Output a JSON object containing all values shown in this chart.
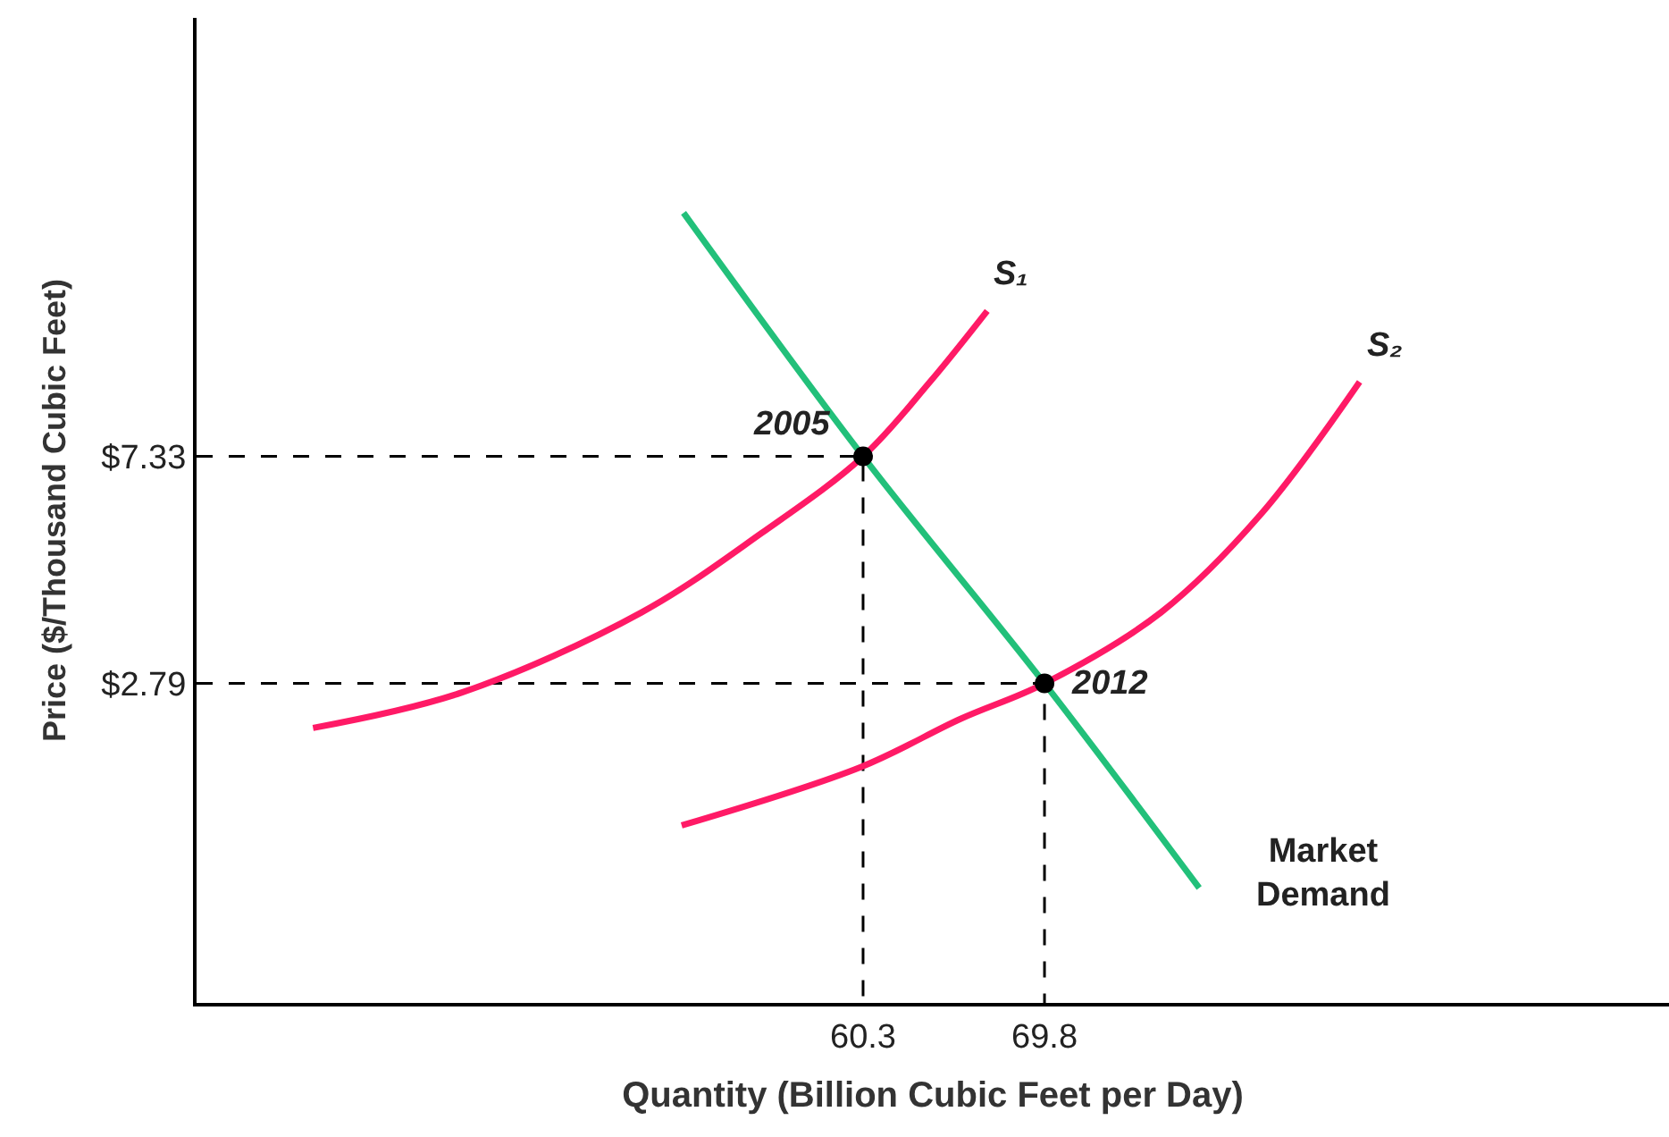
{
  "chart_data": {
    "type": "line",
    "xlabel": "Quantity (Billion Cubic Feet per Day)",
    "ylabel": "Price ($/Thousand Cubic Feet)",
    "xlim": [
      25.4,
      102.5
    ],
    "ylim": [
      -3.6,
      16.1
    ],
    "xticks": [
      60.3,
      69.8
    ],
    "yticks": [
      {
        "value": 2.79,
        "label": "$2.79"
      },
      {
        "value": 7.33,
        "label": "$7.33"
      }
    ],
    "legend": false,
    "marker": "none",
    "series": [
      {
        "line_style": "dashed",
        "color": "#000000",
        "x": [
          25.4,
          60.3,
          60.3
        ],
        "values": [
          7.33,
          7.33,
          -3.6
        ]
      },
      {
        "line_style": "dashed",
        "color": "#000000",
        "x": [
          25.4,
          69.8,
          69.8
        ],
        "values": [
          2.79,
          2.79,
          -3.6
        ]
      },
      {
        "name": "S₁",
        "color": "#ff1a66",
        "x": [
          31.5,
          39.3,
          48.7,
          55.0,
          60.3,
          63.8,
          66.8
        ],
        "values": [
          1.9,
          2.61,
          4.21,
          5.8,
          7.33,
          8.82,
          10.24
        ]
      },
      {
        "name": "S₂",
        "color": "#ff1a66",
        "x": [
          50.8,
          60.2,
          65.4,
          69.8,
          75.9,
          81.1,
          86.3
        ],
        "values": [
          -0.05,
          1.12,
          2.08,
          2.79,
          4.21,
          6.16,
          8.82
        ]
      },
      {
        "name": "Market Demand",
        "color": "#22c07a",
        "x": [
          50.9,
          60.3,
          69.8,
          77.9
        ],
        "values": [
          12.2,
          7.33,
          2.79,
          -1.3
        ]
      },
      {
        "type": "scatter",
        "name": "2005",
        "marker": "circle",
        "color": "#000000",
        "x": [
          60.3
        ],
        "values": [
          7.33
        ]
      },
      {
        "type": "scatter",
        "name": "2012",
        "marker": "circle",
        "color": "#000000",
        "x": [
          69.8
        ],
        "values": [
          2.79
        ]
      }
    ]
  }
}
